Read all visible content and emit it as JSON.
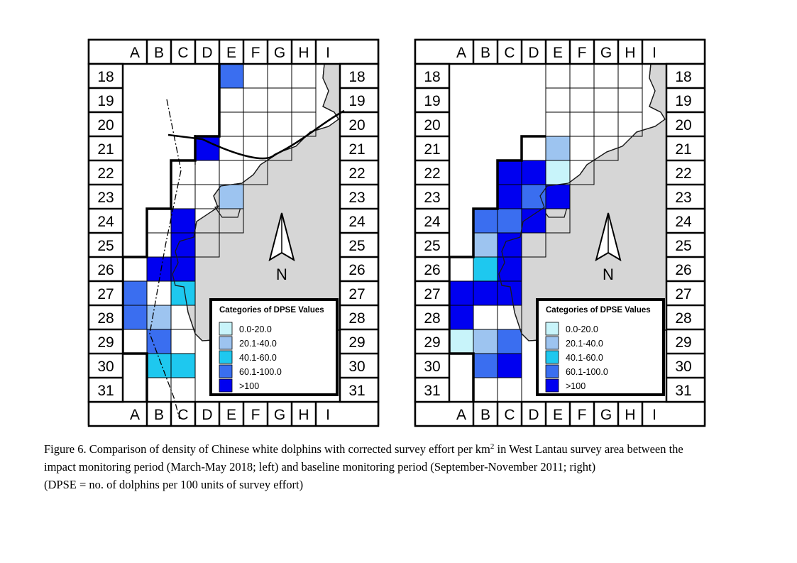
{
  "columns": [
    "A",
    "B",
    "C",
    "D",
    "E",
    "F",
    "G",
    "H",
    "I"
  ],
  "rows": [
    "18",
    "19",
    "20",
    "21",
    "22",
    "23",
    "24",
    "25",
    "26",
    "27",
    "28",
    "29",
    "30",
    "31"
  ],
  "north_label": "N",
  "legend": {
    "title": "Categories of DPSE Values",
    "items": [
      {
        "label": "0.0-20.0",
        "color": "#c8f4fa"
      },
      {
        "label": "20.1-40.0",
        "color": "#9dc4f0"
      },
      {
        "label": "40.1-60.0",
        "color": "#1ec8ef"
      },
      {
        "label": "60.1-100.0",
        "color": "#3a6ef0"
      },
      {
        "label": ">100",
        "color": "#0000f0"
      }
    ]
  },
  "colors": {
    "land": "#d6d6d6",
    "coast": "#1a1a1a"
  },
  "maps": [
    {
      "panel": "left",
      "survey_cells": [
        {
          "row": 0,
          "cells": [
            "E",
            "F",
            "G",
            "H"
          ]
        },
        {
          "row": 1,
          "cells": [
            "E",
            "F",
            "G",
            "H"
          ]
        },
        {
          "row": 2,
          "cells": [
            "E",
            "F",
            "G",
            "H"
          ]
        },
        {
          "row": 3,
          "cells": [
            "D",
            "E",
            "F",
            "G"
          ]
        },
        {
          "row": 4,
          "cells": [
            "C",
            "D",
            "E",
            "F"
          ]
        },
        {
          "row": 5,
          "cells": [
            "C",
            "D",
            "E"
          ]
        },
        {
          "row": 6,
          "cells": [
            "B",
            "C",
            "D",
            "E"
          ]
        },
        {
          "row": 7,
          "cells": [
            "B",
            "C",
            "D"
          ]
        },
        {
          "row": 8,
          "cells": [
            "A",
            "B",
            "C"
          ]
        },
        {
          "row": 9,
          "cells": [
            "A",
            "B",
            "C"
          ]
        },
        {
          "row": 10,
          "cells": [
            "A",
            "B",
            "C"
          ]
        },
        {
          "row": 11,
          "cells": [
            "A",
            "B",
            "C"
          ]
        },
        {
          "row": 12,
          "cells": [
            "B",
            "C"
          ]
        },
        {
          "row": 13,
          "cells": [
            "B",
            "C"
          ]
        }
      ],
      "dpse_cells": [
        {
          "col": "E",
          "row": 0,
          "category": 4
        },
        {
          "col": "D",
          "row": 3,
          "category": 5
        },
        {
          "col": "E",
          "row": 5,
          "category": 2
        },
        {
          "col": "C",
          "row": 6,
          "category": 5
        },
        {
          "col": "C",
          "row": 7,
          "category": 5
        },
        {
          "col": "B",
          "row": 8,
          "category": 5
        },
        {
          "col": "C",
          "row": 8,
          "category": 5
        },
        {
          "col": "A",
          "row": 9,
          "category": 4
        },
        {
          "col": "C",
          "row": 9,
          "category": 3
        },
        {
          "col": "A",
          "row": 10,
          "category": 4
        },
        {
          "col": "B",
          "row": 10,
          "category": 2
        },
        {
          "col": "B",
          "row": 11,
          "category": 4
        },
        {
          "col": "B",
          "row": 12,
          "category": 3
        },
        {
          "col": "C",
          "row": 12,
          "category": 3
        }
      ]
    },
    {
      "panel": "right",
      "survey_cells": [
        {
          "row": 0,
          "cells": [
            "E",
            "F",
            "G",
            "H"
          ]
        },
        {
          "row": 1,
          "cells": [
            "E",
            "F",
            "G",
            "H"
          ]
        },
        {
          "row": 2,
          "cells": [
            "E",
            "F",
            "G",
            "H"
          ]
        },
        {
          "row": 3,
          "cells": [
            "D",
            "E",
            "F",
            "G"
          ]
        },
        {
          "row": 4,
          "cells": [
            "C",
            "D",
            "E",
            "F"
          ]
        },
        {
          "row": 5,
          "cells": [
            "C",
            "D",
            "E"
          ]
        },
        {
          "row": 6,
          "cells": [
            "B",
            "C",
            "D",
            "E"
          ]
        },
        {
          "row": 7,
          "cells": [
            "B",
            "C",
            "D"
          ]
        },
        {
          "row": 8,
          "cells": [
            "A",
            "B",
            "C"
          ]
        },
        {
          "row": 9,
          "cells": [
            "A",
            "B",
            "C"
          ]
        },
        {
          "row": 10,
          "cells": [
            "A",
            "B",
            "C"
          ]
        },
        {
          "row": 11,
          "cells": [
            "A",
            "B",
            "C"
          ]
        },
        {
          "row": 12,
          "cells": [
            "B",
            "C"
          ]
        },
        {
          "row": 13,
          "cells": [
            "B",
            "C"
          ]
        }
      ],
      "dpse_cells": [
        {
          "col": "E",
          "row": 3,
          "category": 2
        },
        {
          "col": "C",
          "row": 4,
          "category": 5
        },
        {
          "col": "D",
          "row": 4,
          "category": 5
        },
        {
          "col": "E",
          "row": 4,
          "category": 1
        },
        {
          "col": "C",
          "row": 5,
          "category": 5
        },
        {
          "col": "D",
          "row": 5,
          "category": 4
        },
        {
          "col": "E",
          "row": 5,
          "category": 5
        },
        {
          "col": "B",
          "row": 6,
          "category": 4
        },
        {
          "col": "C",
          "row": 6,
          "category": 4
        },
        {
          "col": "D",
          "row": 6,
          "category": 5
        },
        {
          "col": "B",
          "row": 7,
          "category": 2
        },
        {
          "col": "C",
          "row": 7,
          "category": 5
        },
        {
          "col": "B",
          "row": 8,
          "category": 3
        },
        {
          "col": "C",
          "row": 8,
          "category": 5
        },
        {
          "col": "A",
          "row": 9,
          "category": 5
        },
        {
          "col": "B",
          "row": 9,
          "category": 5
        },
        {
          "col": "C",
          "row": 9,
          "category": 5
        },
        {
          "col": "A",
          "row": 10,
          "category": 5
        },
        {
          "col": "A",
          "row": 11,
          "category": 1
        },
        {
          "col": "B",
          "row": 11,
          "category": 2
        },
        {
          "col": "C",
          "row": 11,
          "category": 4
        },
        {
          "col": "B",
          "row": 12,
          "category": 4
        },
        {
          "col": "C",
          "row": 12,
          "category": 5
        }
      ]
    }
  ],
  "caption": {
    "line1_before_sup": "Figure 6.  Comparison of density of Chinese white dolphins with corrected survey effort per km",
    "line1_sup": "2",
    "line1_after_sup": " in West Lantau survey area between the",
    "line2": "impact monitoring period (March-May 2018; left) and baseline monitoring period (September-November 2011; right)",
    "line3": "(DPSE = no. of dolphins per 100 units of survey effort)"
  }
}
